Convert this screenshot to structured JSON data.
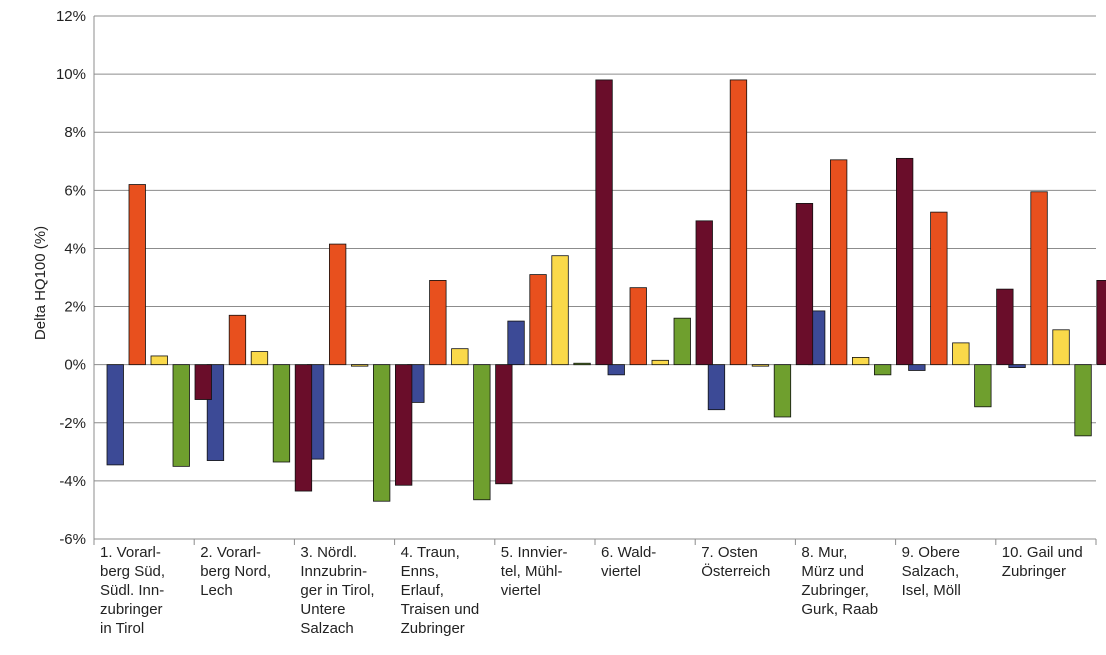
{
  "chart_data": {
    "type": "bar",
    "ylabel": "Delta HQ100 (%)",
    "xlabel": "",
    "ylim": [
      -6,
      12
    ],
    "ytick_step": 2,
    "ytick_labels": [
      "-6%",
      "-4%",
      "-2%",
      "0%",
      "2%",
      "4%",
      "6%",
      "8%",
      "10%",
      "12%"
    ],
    "grid": true,
    "legend": "none",
    "categories": [
      [
        "1. Vorarl-",
        "berg Süd,",
        "Südl. Inn-",
        "zubringer",
        "in Tirol"
      ],
      [
        "2. Vorarl-",
        "berg Nord,",
        "Lech"
      ],
      [
        "3. Nördl.",
        "Innzubrin-",
        "ger in Tirol,",
        "Untere",
        "Salzach"
      ],
      [
        "4. Traun,",
        "Enns,",
        "Erlauf,",
        "Traisen und",
        "Zubringer"
      ],
      [
        "5. Innvier-",
        "tel, Mühl-",
        "viertel"
      ],
      [
        "6. Wald-",
        "viertel"
      ],
      [
        "7. Osten",
        "Österreich"
      ],
      [
        "8. Mur,",
        "Mürz und",
        "Zubringer,",
        "Gurk, Raab"
      ],
      [
        "9. Obere",
        "Salzach,",
        "Isel, Möll"
      ],
      [
        "10. Gail und",
        "Zubringer"
      ]
    ],
    "series": [
      {
        "color": "#3c4a96",
        "values": [
          -3.45,
          -3.3,
          -3.25,
          -1.3,
          1.5,
          -0.35,
          -1.55,
          1.85,
          -0.2,
          -0.1
        ]
      },
      {
        "color": "#e8501e",
        "values": [
          6.2,
          1.7,
          4.15,
          2.9,
          3.1,
          2.65,
          9.8,
          7.05,
          5.25,
          5.95
        ]
      },
      {
        "color": "#fad94a",
        "values": [
          0.3,
          0.45,
          0,
          0.55,
          3.75,
          0.15,
          0,
          0.25,
          0.75,
          1.2
        ]
      },
      {
        "color": "#6f9f2e",
        "values": [
          -3.5,
          -3.35,
          -4.7,
          -4.65,
          0.05,
          1.6,
          -1.8,
          -0.35,
          -1.45,
          -2.45
        ]
      },
      {
        "color": "#6a0d2a",
        "values": [
          -1.2,
          -4.35,
          -4.15,
          -4.1,
          9.8,
          4.95,
          5.55,
          7.1,
          2.6,
          2.9
        ]
      }
    ]
  }
}
